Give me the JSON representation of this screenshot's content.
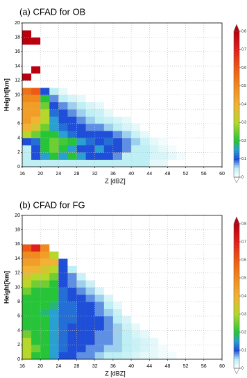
{
  "chart_data": [
    {
      "type": "heatmap",
      "title": "(a) CFAD for OB",
      "xlabel": "Z [dBZ]",
      "ylabel": "Height[km]",
      "x": [
        17,
        19,
        21,
        23,
        25,
        27,
        29,
        31,
        33,
        35,
        37,
        39,
        41,
        43,
        45,
        47,
        49,
        51,
        53
      ],
      "y": [
        0.5,
        1.5,
        2.5,
        3.5,
        4.5,
        5.5,
        6.5,
        7.5,
        8.5,
        9.5,
        10.5,
        11.5,
        12.5,
        13.5,
        14.5,
        15.5,
        16.5,
        17.5,
        18.5,
        19.5
      ],
      "values": [
        [
          0.05,
          0.05,
          0.05,
          0.05,
          0.05,
          0.05,
          0.05,
          0.05,
          0.05,
          0.05,
          0.05,
          0.05,
          0.05,
          0.05,
          0.02,
          0.02,
          0,
          0,
          0
        ],
        [
          0.05,
          0.1,
          0.15,
          0.2,
          0.15,
          0.2,
          0.15,
          0.1,
          0.1,
          0.1,
          0.08,
          0.05,
          0.05,
          0.05,
          0.03,
          0.03,
          0.02,
          0.01,
          0
        ],
        [
          0.05,
          0.1,
          0.2,
          0.25,
          0.2,
          0.15,
          0.1,
          0.1,
          0.15,
          0.1,
          0.1,
          0.08,
          0.05,
          0.05,
          0.03,
          0.02,
          0.01,
          0,
          0
        ],
        [
          0.1,
          0.12,
          0.2,
          0.25,
          0.22,
          0.2,
          0.15,
          0.12,
          0.1,
          0.12,
          0.1,
          0.08,
          0.06,
          0.04,
          0.02,
          0.01,
          0,
          0,
          0
        ],
        [
          0.3,
          0.25,
          0.2,
          0.2,
          0.15,
          0.12,
          0.1,
          0.1,
          0.1,
          0.1,
          0.08,
          0.06,
          0.04,
          0.02,
          0,
          0,
          0,
          0,
          0
        ],
        [
          0.4,
          0.35,
          0.25,
          0.15,
          0.12,
          0.1,
          0.1,
          0.08,
          0.08,
          0.06,
          0.05,
          0.03,
          0.02,
          0,
          0,
          0,
          0,
          0,
          0
        ],
        [
          0.45,
          0.4,
          0.3,
          0.15,
          0.1,
          0.1,
          0.08,
          0.06,
          0.05,
          0.04,
          0.03,
          0.02,
          0,
          0,
          0,
          0,
          0,
          0,
          0
        ],
        [
          0.45,
          0.45,
          0.3,
          0.12,
          0.1,
          0.08,
          0.06,
          0.05,
          0.04,
          0.02,
          0,
          0,
          0,
          0,
          0,
          0,
          0,
          0,
          0
        ],
        [
          0.45,
          0.45,
          0.25,
          0.1,
          0.08,
          0.06,
          0.05,
          0.03,
          0.02,
          0,
          0,
          0,
          0,
          0,
          0,
          0,
          0,
          0,
          0
        ],
        [
          0.5,
          0.5,
          0.2,
          0.08,
          0.05,
          0.03,
          0.02,
          0,
          0,
          0,
          0,
          0,
          0,
          0,
          0,
          0,
          0,
          0,
          0
        ],
        [
          0.55,
          0.6,
          0.1,
          0.05,
          0.02,
          0,
          0,
          0,
          0,
          0,
          0,
          0,
          0,
          0,
          0,
          0,
          0,
          0,
          0
        ],
        [
          0,
          0,
          0,
          0,
          0,
          0,
          0,
          0,
          0,
          0,
          0,
          0,
          0,
          0,
          0,
          0,
          0,
          0,
          0
        ],
        [
          0.8,
          0,
          0,
          0,
          0,
          0,
          0,
          0,
          0,
          0,
          0,
          0,
          0,
          0,
          0,
          0,
          0,
          0,
          0
        ],
        [
          0,
          0.8,
          0,
          0,
          0,
          0,
          0,
          0,
          0,
          0,
          0,
          0,
          0,
          0,
          0,
          0,
          0,
          0,
          0
        ],
        [
          0,
          0,
          0,
          0,
          0,
          0,
          0,
          0,
          0,
          0,
          0,
          0,
          0,
          0,
          0,
          0,
          0,
          0,
          0
        ],
        [
          0,
          0,
          0,
          0,
          0,
          0,
          0,
          0,
          0,
          0,
          0,
          0,
          0,
          0,
          0,
          0,
          0,
          0,
          0
        ],
        [
          0,
          0,
          0,
          0,
          0,
          0,
          0,
          0,
          0,
          0,
          0,
          0,
          0,
          0,
          0,
          0,
          0,
          0,
          0
        ],
        [
          0.8,
          0.8,
          0,
          0,
          0,
          0,
          0,
          0,
          0,
          0,
          0,
          0,
          0,
          0,
          0,
          0,
          0,
          0,
          0
        ],
        [
          0.8,
          0,
          0,
          0,
          0,
          0,
          0,
          0,
          0,
          0,
          0,
          0,
          0,
          0,
          0,
          0,
          0,
          0,
          0
        ],
        [
          0,
          0,
          0,
          0,
          0,
          0,
          0,
          0,
          0,
          0,
          0,
          0,
          0,
          0,
          0,
          0,
          0,
          0,
          0
        ]
      ],
      "xlim": [
        16,
        60
      ],
      "xticks": [
        16,
        20,
        24,
        28,
        32,
        36,
        40,
        44,
        48,
        52,
        56,
        60
      ],
      "ylim": [
        0,
        20
      ],
      "yticks": [
        0,
        2,
        4,
        6,
        8,
        10,
        12,
        14,
        16,
        18,
        20
      ],
      "zlim": [
        0,
        0.8
      ],
      "zticks": [
        0,
        0.1,
        0.2,
        0.3,
        0.4,
        0.5,
        0.6,
        0.7,
        0.8
      ],
      "grid": true,
      "colorscale": [
        [
          0,
          "#ffffff"
        ],
        [
          0.05,
          "#bdeff4"
        ],
        [
          0.1,
          "#1f4fd8"
        ],
        [
          0.15,
          "#2aa0d0"
        ],
        [
          0.2,
          "#27c43a"
        ],
        [
          0.3,
          "#b5d82a"
        ],
        [
          0.4,
          "#f2b233"
        ],
        [
          0.5,
          "#f08a1e"
        ],
        [
          0.6,
          "#ee5a14"
        ],
        [
          0.7,
          "#e0201a"
        ],
        [
          0.8,
          "#b8000e"
        ]
      ]
    },
    {
      "type": "heatmap",
      "title": "(b) CFAD for FG",
      "xlabel": "Z [dBZ]",
      "ylabel": "Height[km]",
      "x": [
        17,
        19,
        21,
        23,
        25,
        27,
        29,
        31,
        33,
        35,
        37,
        39,
        41,
        43,
        45,
        47,
        49,
        51,
        53
      ],
      "y": [
        0.5,
        1.5,
        2.5,
        3.5,
        4.5,
        5.5,
        6.5,
        7.5,
        8.5,
        9.5,
        10.5,
        11.5,
        12.5,
        13.5,
        14.5,
        15.5,
        16.5,
        17.5,
        18.5,
        19.5
      ],
      "values": [
        [
          0.3,
          0.2,
          0.2,
          0.15,
          0.1,
          0.1,
          0.08,
          0.08,
          0.06,
          0.05,
          0.05,
          0.04,
          0.03,
          0.02,
          0.02,
          0.01,
          0.01,
          0,
          0
        ],
        [
          0.3,
          0.25,
          0.2,
          0.15,
          0.12,
          0.1,
          0.1,
          0.08,
          0.08,
          0.06,
          0.06,
          0.05,
          0.04,
          0.03,
          0.02,
          0.01,
          0,
          0,
          0
        ],
        [
          0.3,
          0.2,
          0.2,
          0.15,
          0.12,
          0.1,
          0.1,
          0.1,
          0.08,
          0.08,
          0.06,
          0.05,
          0.04,
          0.03,
          0.02,
          0,
          0,
          0,
          0
        ],
        [
          0.25,
          0.2,
          0.2,
          0.15,
          0.12,
          0.1,
          0.1,
          0.1,
          0.08,
          0.08,
          0.06,
          0.05,
          0.03,
          0.02,
          0,
          0,
          0,
          0,
          0
        ],
        [
          0.2,
          0.2,
          0.2,
          0.15,
          0.12,
          0.1,
          0.1,
          0.1,
          0.1,
          0.08,
          0.06,
          0.04,
          0.02,
          0,
          0,
          0,
          0,
          0,
          0
        ],
        [
          0.2,
          0.2,
          0.2,
          0.15,
          0.12,
          0.12,
          0.1,
          0.1,
          0.1,
          0.08,
          0.05,
          0.03,
          0,
          0,
          0,
          0,
          0,
          0,
          0
        ],
        [
          0.2,
          0.2,
          0.18,
          0.15,
          0.12,
          0.12,
          0.1,
          0.1,
          0.08,
          0.06,
          0.04,
          0,
          0,
          0,
          0,
          0,
          0,
          0,
          0
        ],
        [
          0.2,
          0.2,
          0.2,
          0.18,
          0.12,
          0.12,
          0.1,
          0.1,
          0.08,
          0.05,
          0.02,
          0,
          0,
          0,
          0,
          0,
          0,
          0,
          0
        ],
        [
          0.2,
          0.2,
          0.2,
          0.2,
          0.12,
          0.1,
          0.1,
          0.08,
          0.06,
          0.03,
          0,
          0,
          0,
          0,
          0,
          0,
          0,
          0,
          0
        ],
        [
          0.25,
          0.2,
          0.2,
          0.2,
          0.12,
          0.1,
          0.08,
          0.06,
          0.03,
          0,
          0,
          0,
          0,
          0,
          0,
          0,
          0,
          0,
          0
        ],
        [
          0.3,
          0.25,
          0.25,
          0.2,
          0.1,
          0.08,
          0.06,
          0.04,
          0,
          0,
          0,
          0,
          0,
          0,
          0,
          0,
          0,
          0,
          0
        ],
        [
          0.35,
          0.3,
          0.3,
          0.25,
          0.1,
          0.08,
          0.04,
          0,
          0,
          0,
          0,
          0,
          0,
          0,
          0,
          0,
          0,
          0,
          0
        ],
        [
          0.4,
          0.4,
          0.35,
          0.3,
          0.1,
          0.05,
          0,
          0,
          0,
          0,
          0,
          0,
          0,
          0,
          0,
          0,
          0,
          0,
          0
        ],
        [
          0.45,
          0.45,
          0.4,
          0.4,
          0.1,
          0,
          0,
          0,
          0,
          0,
          0,
          0,
          0,
          0,
          0,
          0,
          0,
          0,
          0
        ],
        [
          0.5,
          0.5,
          0.45,
          0.3,
          0,
          0,
          0,
          0,
          0,
          0,
          0,
          0,
          0,
          0,
          0,
          0,
          0,
          0,
          0
        ],
        [
          0.6,
          0.7,
          0.5,
          0,
          0,
          0,
          0,
          0,
          0,
          0,
          0,
          0,
          0,
          0,
          0,
          0,
          0,
          0,
          0
        ],
        [
          0,
          0,
          0,
          0,
          0,
          0,
          0,
          0,
          0,
          0,
          0,
          0,
          0,
          0,
          0,
          0,
          0,
          0,
          0
        ],
        [
          0,
          0,
          0,
          0,
          0,
          0,
          0,
          0,
          0,
          0,
          0,
          0,
          0,
          0,
          0,
          0,
          0,
          0,
          0
        ],
        [
          0,
          0,
          0,
          0,
          0,
          0,
          0,
          0,
          0,
          0,
          0,
          0,
          0,
          0,
          0,
          0,
          0,
          0,
          0
        ],
        [
          0,
          0,
          0,
          0,
          0,
          0,
          0,
          0,
          0,
          0,
          0,
          0,
          0,
          0,
          0,
          0,
          0,
          0,
          0
        ]
      ],
      "xlim": [
        16,
        60
      ],
      "xticks": [
        16,
        20,
        24,
        28,
        32,
        36,
        40,
        44,
        48,
        52,
        56,
        60
      ],
      "ylim": [
        0,
        20
      ],
      "yticks": [
        0,
        2,
        4,
        6,
        8,
        10,
        12,
        14,
        16,
        18,
        20
      ],
      "zlim": [
        0,
        0.8
      ],
      "zticks": [
        0,
        0.1,
        0.2,
        0.3,
        0.4,
        0.5,
        0.6,
        0.7,
        0.8
      ],
      "grid": true,
      "colorscale": [
        [
          0,
          "#ffffff"
        ],
        [
          0.05,
          "#bdeff4"
        ],
        [
          0.1,
          "#1f4fd8"
        ],
        [
          0.15,
          "#2aa0d0"
        ],
        [
          0.2,
          "#27c43a"
        ],
        [
          0.3,
          "#b5d82a"
        ],
        [
          0.4,
          "#f2b233"
        ],
        [
          0.5,
          "#f08a1e"
        ],
        [
          0.6,
          "#ee5a14"
        ],
        [
          0.7,
          "#e0201a"
        ],
        [
          0.8,
          "#b8000e"
        ]
      ]
    }
  ]
}
